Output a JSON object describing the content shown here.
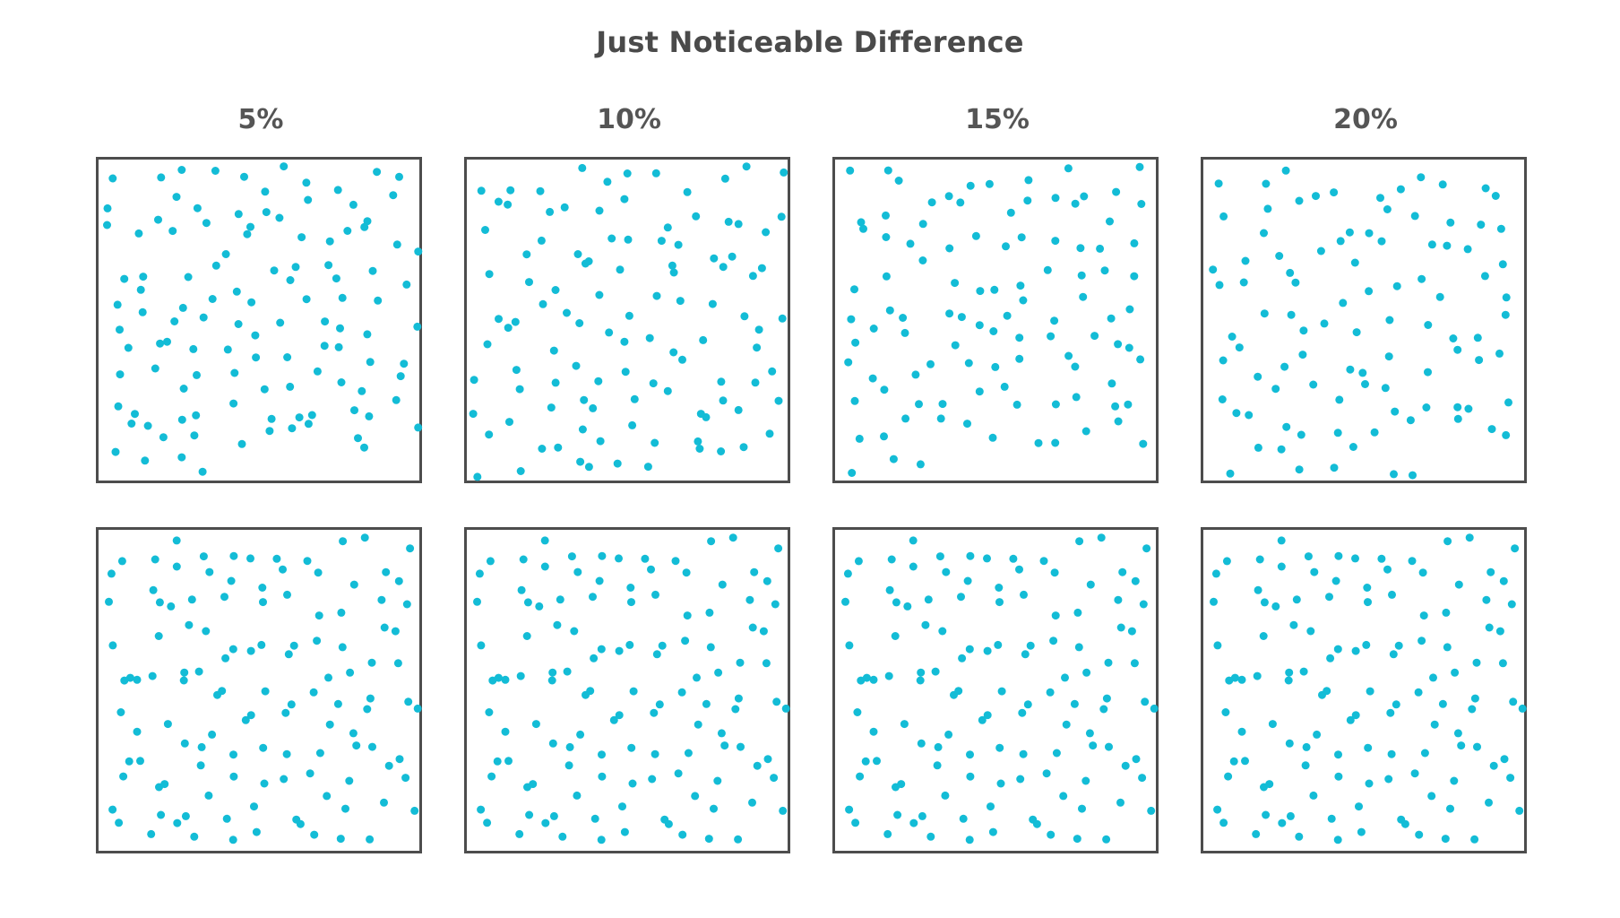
{
  "title": "Just Noticeable Difference",
  "columns": [
    {
      "label": "5%",
      "percent": 5
    },
    {
      "label": "10%",
      "percent": 10
    },
    {
      "label": "15%",
      "percent": 15
    },
    {
      "label": "20%",
      "percent": 20
    }
  ],
  "rows": [
    {
      "role": "comparison",
      "description_visible": false
    },
    {
      "role": "reference",
      "description_visible": false
    }
  ],
  "colors": {
    "dot": "#13bcd6",
    "border": "#4d4d4d",
    "text": "#4d4d4d",
    "background": "#ffffff"
  }
}
